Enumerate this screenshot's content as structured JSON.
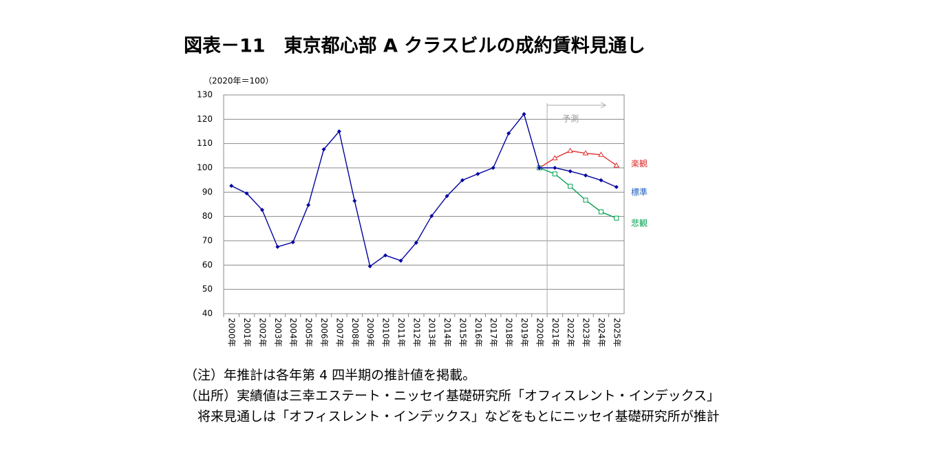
{
  "chart_data": {
    "type": "line",
    "title": "図表－11　東京都心部 A クラスビルの成約賃料見通し",
    "y_axis_label": "（2020年＝100）",
    "categories": [
      "2000年",
      "2001年",
      "2002年",
      "2003年",
      "2004年",
      "2005年",
      "2006年",
      "2007年",
      "2008年",
      "2009年",
      "2010年",
      "2011年",
      "2012年",
      "2013年",
      "2014年",
      "2015年",
      "2016年",
      "2017年",
      "2018年",
      "2019年",
      "2020年",
      "2021年",
      "2022年",
      "2023年",
      "2024年",
      "2025年"
    ],
    "series": [
      {
        "name": "標準",
        "color": "#0000a0",
        "label_color": "#1f5fbf",
        "marker": "diamond",
        "values": [
          92.6,
          89.5,
          82.7,
          67.5,
          69.4,
          84.7,
          107.6,
          115,
          86.4,
          59.5,
          64,
          61.8,
          69.2,
          80.2,
          88.4,
          94.9,
          97.5,
          100,
          114.2,
          122.1,
          100,
          100,
          98.6,
          96.9,
          94.9,
          92.1
        ]
      },
      {
        "name": "楽観",
        "color": "#e03030",
        "label_color": "#e03030",
        "marker": "triangle",
        "values": [
          null,
          null,
          null,
          null,
          null,
          null,
          null,
          null,
          null,
          null,
          null,
          null,
          null,
          null,
          null,
          null,
          null,
          null,
          null,
          null,
          100,
          104,
          107,
          106,
          105.4,
          101
        ]
      },
      {
        "name": "悲観",
        "color": "#00a050",
        "label_color": "#00a050",
        "marker": "square",
        "values": [
          null,
          null,
          null,
          null,
          null,
          null,
          null,
          null,
          null,
          null,
          null,
          null,
          null,
          null,
          null,
          null,
          null,
          null,
          null,
          null,
          100,
          97.5,
          92.4,
          86.7,
          81.9,
          79.3
        ]
      }
    ],
    "forecast_label": "予測",
    "ylim": [
      40,
      130
    ],
    "yticks": [
      40,
      50,
      60,
      70,
      80,
      90,
      100,
      110,
      120,
      130
    ],
    "grid": true
  },
  "notes": [
    "（注）年推計は各年第 4 四半期の推計値を掲載。",
    "（出所）実績値は三幸エステート・ニッセイ基礎研究所「オフィスレント・インデックス」",
    "　将来見通しは「オフィスレント・インデックス」などをもとにニッセイ基礎研究所が推計"
  ]
}
